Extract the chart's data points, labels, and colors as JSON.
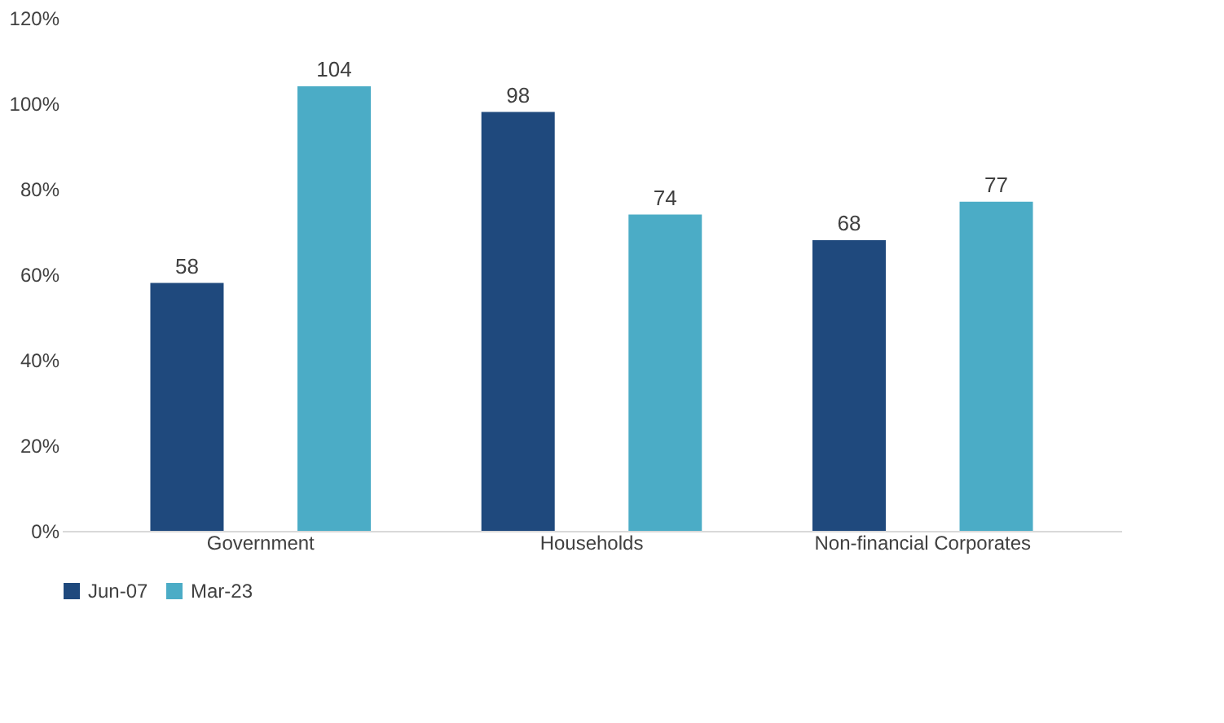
{
  "chart_data": {
    "type": "bar",
    "categories": [
      "Government",
      "Households",
      "Non-financial Corporates"
    ],
    "series": [
      {
        "name": "Jun-07",
        "color": "#1f497d",
        "values": [
          58,
          98,
          68
        ]
      },
      {
        "name": "Mar-23",
        "color": "#4bacc6",
        "values": [
          104,
          74,
          77
        ]
      }
    ],
    "ylim": [
      0,
      120
    ],
    "yticks": [
      {
        "value": 0,
        "label": "0%"
      },
      {
        "value": 20,
        "label": "20%"
      },
      {
        "value": 40,
        "label": "40%"
      },
      {
        "value": 60,
        "label": "60%"
      },
      {
        "value": 80,
        "label": "80%"
      },
      {
        "value": 100,
        "label": "100%"
      },
      {
        "value": 120,
        "label": "120%"
      }
    ],
    "data_labels": true,
    "legend": "bottom",
    "grid": false
  }
}
